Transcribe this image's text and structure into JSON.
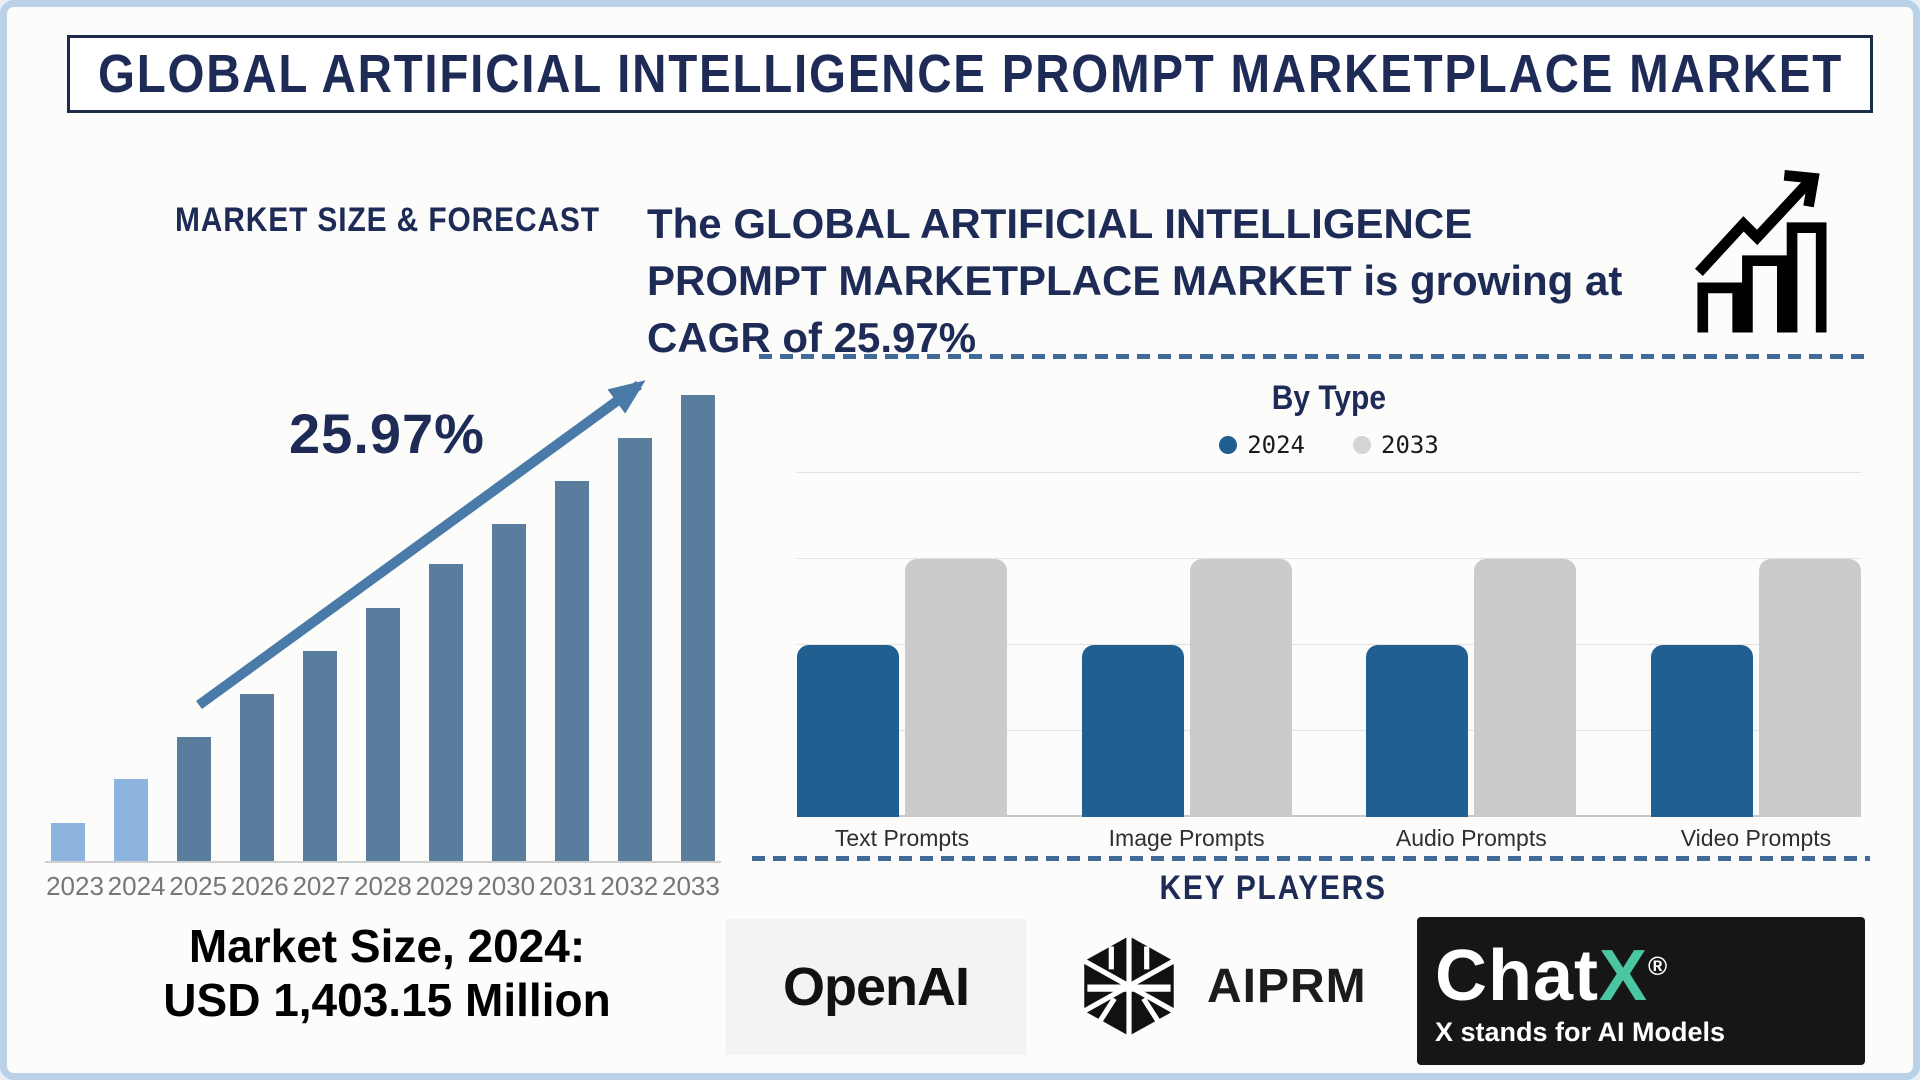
{
  "page": {
    "title": "GLOBAL ARTIFICIAL INTELLIGENCE PROMPT MARKETPLACE MARKET"
  },
  "left_panel": {
    "section_title": "MARKET SIZE & FORECAST",
    "cagr_annotation": "25.97%",
    "market_size_line1": "Market Size, 2024:",
    "market_size_line2": "USD 1,403.15 Million"
  },
  "right_panel": {
    "growth_lines": {
      "0": "The GLOBAL ARTIFICIAL INTELLIGENCE",
      "1": "PROMPT MARKETPLACE MARKET is growing at",
      "2": "CAGR of 25.97%"
    }
  },
  "key_players": {
    "section_title": "KEY PLAYERS",
    "openai_label": "OpenAI",
    "aiprm_label": "AIPRM",
    "chatx": {
      "wordmark_chat": "Chat",
      "wordmark_x": "X",
      "registered": "®",
      "tagline": "X stands for AI Models"
    }
  },
  "chart_data": [
    {
      "type": "bar",
      "title": "MARKET SIZE & FORECAST",
      "categories": [
        "2023",
        "2024",
        "2025",
        "2026",
        "2027",
        "2028",
        "2029",
        "2030",
        "2031",
        "2032",
        "2033"
      ],
      "values_relative_pct": [
        8.1,
        17.6,
        26.6,
        35.8,
        45.0,
        54.2,
        63.8,
        72.4,
        81.6,
        90.8,
        100.0
      ],
      "light_years": [
        "2023",
        "2024"
      ],
      "bar_color": "#5a7d9e",
      "bar_color_light": "#8cb4de",
      "annotation": "25.97%",
      "known_point": {
        "year": "2024",
        "value": "USD 1,403.15 Million"
      },
      "xlabel": "",
      "ylabel": "",
      "grid": false,
      "legend_position": "none"
    },
    {
      "type": "bar",
      "title": "By Type",
      "categories": [
        "Text Prompts",
        "Image Prompts",
        "Audio Prompts",
        "Video Prompts"
      ],
      "series": [
        {
          "name": "2024",
          "values": [
            2,
            2,
            2,
            2
          ],
          "color": "#205f8f"
        },
        {
          "name": "2033",
          "values": [
            3,
            3,
            3,
            3
          ],
          "color": "#cbcbcb"
        }
      ],
      "ylim": [
        0,
        4
      ],
      "grid": true,
      "legend_position": "top",
      "note": "relative units; no y-axis tick labels shown"
    }
  ],
  "colors": {
    "navy": "#1d2b56",
    "frame_border": "#bad2e8",
    "dashed_separator": "#3f6b96",
    "trend_arrow": "#4a7aa8",
    "legend_2033_dot": "#d4d4d4",
    "openai_box_bg": "#f3f3f2",
    "chatx_box_bg": "#161616",
    "chatx_x_teal": "#4ac7a2"
  }
}
